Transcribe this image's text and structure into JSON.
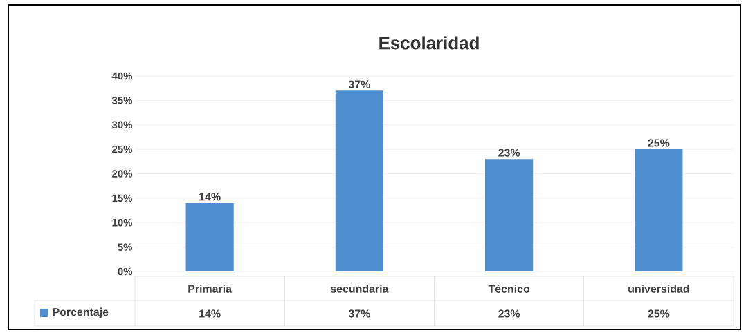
{
  "chart_data": {
    "type": "bar",
    "title": "Escolaridad",
    "categories": [
      "Primaria",
      "secundaria",
      "Técnico",
      "universidad"
    ],
    "series": [
      {
        "name": "Porcentaje",
        "color": "#4f8fd0",
        "values": [
          14,
          37,
          23,
          25
        ]
      }
    ],
    "value_labels": [
      "14%",
      "37%",
      "23%",
      "25%"
    ],
    "ylim": [
      0,
      40
    ],
    "yticks": [
      {
        "value": 0,
        "label": "0%"
      },
      {
        "value": 5,
        "label": "5%"
      },
      {
        "value": 10,
        "label": "10%"
      },
      {
        "value": 15,
        "label": "15%"
      },
      {
        "value": 20,
        "label": "20%"
      },
      {
        "value": 25,
        "label": "25%"
      },
      {
        "value": 30,
        "label": "30%"
      },
      {
        "value": 35,
        "label": "35%"
      },
      {
        "value": 40,
        "label": "40%"
      }
    ],
    "grid": "y",
    "legend": "bottom left"
  }
}
